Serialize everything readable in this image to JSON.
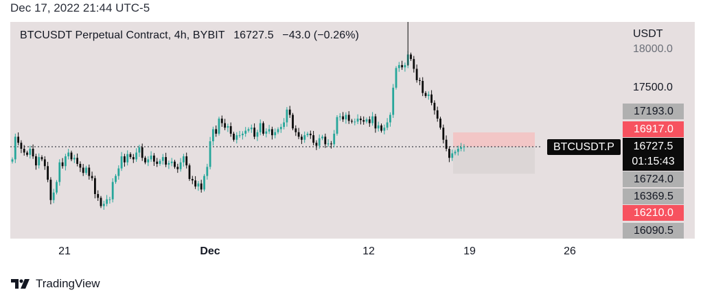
{
  "timestamp": "Dec 17, 2022 21:44 UTC-5",
  "header": {
    "symbol": "BTCUSDT Perpetual Contract, 4h, BYBIT",
    "price": "16727.5",
    "change": "−43.0 (−0.26%)"
  },
  "axis": {
    "unit": "USDT",
    "y_ticks": [
      "18000.0",
      "17500.0"
    ],
    "x_ticks": [
      "21",
      "Dec",
      "12",
      "19",
      "26"
    ]
  },
  "price_labels": [
    {
      "value": "17193.0",
      "style": "gray"
    },
    {
      "value": "16917.0",
      "style": "red"
    },
    {
      "value": "16724.0",
      "style": "gray"
    },
    {
      "value": "16369.5",
      "style": "gray"
    },
    {
      "value": "16210.0",
      "style": "red"
    },
    {
      "value": "16090.5",
      "style": "gray"
    }
  ],
  "current": {
    "symbol_tag": "BTCUSDT.P",
    "price": "16727.5",
    "countdown": "01:15:43"
  },
  "brand": "TradingView",
  "colors": {
    "up": "#26a69a",
    "down": "#0b0b0b",
    "panel": "#e6dfe0",
    "stop_zone": "#f2c6c6",
    "target_zone": "#dcd6d6",
    "label_red": "#f7525f",
    "label_gray": "#b0b0b0"
  },
  "chart_data": {
    "type": "candlestick",
    "title": "BTCUSDT Perpetual Contract, 4h, BYBIT",
    "ylabel": "USDT",
    "ylim": [
      15900,
      18300
    ],
    "x_ticks": [
      "21",
      "Dec",
      "12",
      "19",
      "26"
    ],
    "last_price": 16727.5,
    "position": {
      "stop_top": 16917.0,
      "entry": 16727.5,
      "target_bottom": 16369.5
    },
    "candles_close": [
      16560,
      16860,
      16780,
      16700,
      16650,
      16620,
      16700,
      16600,
      16480,
      16590,
      16560,
      16470,
      16290,
      16020,
      16120,
      16260,
      16520,
      16470,
      16600,
      16650,
      16560,
      16580,
      16500,
      16450,
      16380,
      16450,
      16340,
      16310,
      16100,
      16050,
      15940,
      15970,
      16030,
      16030,
      16260,
      16340,
      16440,
      16600,
      16520,
      16630,
      16590,
      16560,
      16650,
      16720,
      16580,
      16520,
      16560,
      16610,
      16530,
      16500,
      16540,
      16590,
      16490,
      16510,
      16530,
      16460,
      16430,
      16520,
      16600,
      16480,
      16300,
      16280,
      16200,
      16240,
      16160,
      16340,
      16460,
      16800,
      16960,
      16900,
      17100,
      17040,
      16980,
      17000,
      16900,
      16820,
      16880,
      16880,
      16900,
      16940,
      16960,
      16980,
      16860,
      16920,
      17040,
      16900,
      16930,
      16960,
      16880,
      16920,
      16960,
      16990,
      17050,
      17220,
      17150,
      16970,
      16920,
      16860,
      16820,
      16880,
      16900,
      16880,
      16780,
      16740,
      16840,
      16860,
      16760,
      16770,
      16760,
      16900,
      17120,
      17130,
      17090,
      17150,
      17070,
      17060,
      17060,
      17100,
      17080,
      17060,
      17090,
      17040,
      17130,
      16970,
      17010,
      16940,
      16980,
      17050,
      17150,
      17510,
      17770,
      17810,
      17780,
      17810,
      17950,
      17890,
      17760,
      17610,
      17600,
      17440,
      17400,
      17420,
      17310,
      17210,
      17100,
      16980,
      16820,
      16700,
      16580,
      16640,
      16660,
      16700,
      16720,
      16727.5
    ]
  }
}
